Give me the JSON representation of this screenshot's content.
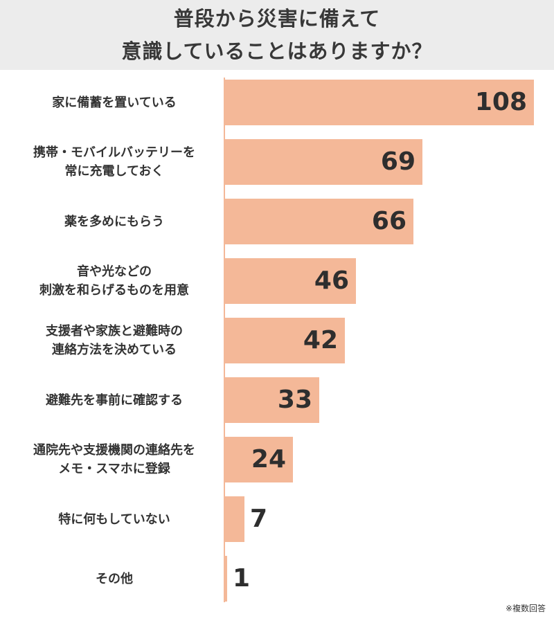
{
  "title": {
    "line1": "普段から災害に備えて",
    "line2": "意識していることはありますか？"
  },
  "note": "※複数回答",
  "colors": {
    "bar": "#f4b898",
    "header_bg": "#ececec",
    "text": "#333333"
  },
  "chart_data": {
    "type": "bar",
    "orientation": "horizontal",
    "title": "普段から災害に備えて意識していることはありますか？",
    "categories": [
      [
        "家に備蓄を置いている"
      ],
      [
        "携帯・モバイルバッテリーを",
        "常に充電しておく"
      ],
      [
        "薬を多めにもらう"
      ],
      [
        "音や光などの",
        "刺激を和らげるものを用意"
      ],
      [
        "支援者や家族と避難時の",
        "連絡方法を決めている"
      ],
      [
        "避難先を事前に確認する"
      ],
      [
        "通院先や支援機関の連絡先を",
        "メモ・スマホに登録"
      ],
      [
        "特に何もしていない"
      ],
      [
        "その他"
      ]
    ],
    "values": [
      108,
      69,
      66,
      46,
      42,
      33,
      24,
      7,
      1
    ],
    "xlim": [
      0,
      108
    ],
    "xlabel": "",
    "ylabel": "",
    "grid": false,
    "legend": "none"
  }
}
